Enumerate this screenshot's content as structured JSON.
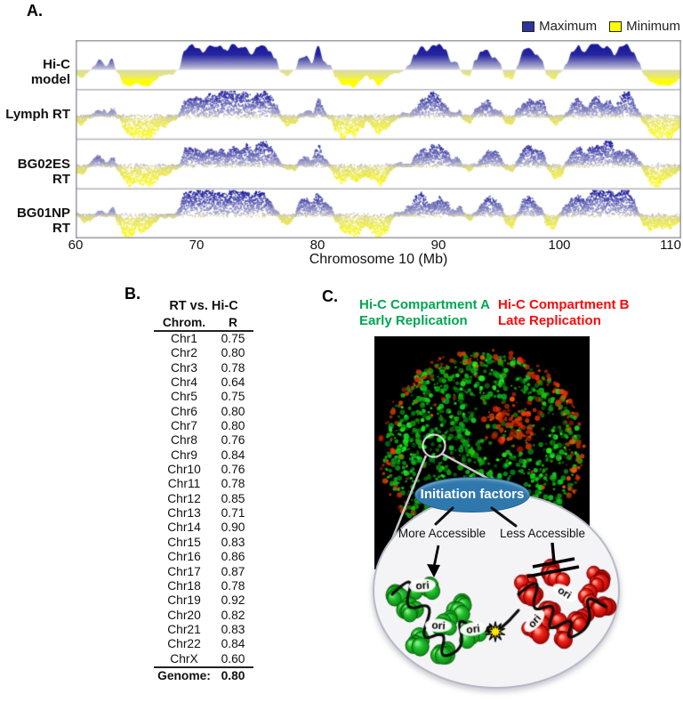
{
  "figure": {
    "panelA": {
      "label": "A."
    },
    "panelB": {
      "label": "B."
    },
    "panelC": {
      "label": "C.",
      "compartmentA_line1": "Hi-C Compartment A",
      "compartmentA_line2": "Early Replication",
      "compartmentB_line1": "Hi-C Compartment B",
      "compartmentB_line2": "Late Replication",
      "green_text_color": "#00a651",
      "red_text_color": "#fa0a0a",
      "bubble": {
        "factors_label": "Initiation factors",
        "factors_bg": "#2f78ad",
        "more_label": "More Accessible",
        "less_label": "Less Accessible",
        "ori_label": "ori",
        "bubble_fill": "#f4f4f6",
        "green_bead": "#22c02e",
        "red_bead": "#ee2518",
        "star_color": "#ffe800"
      },
      "nucleus_colors": {
        "green_signal": "#00cc00",
        "red_signal": "#ee2200",
        "background": "#000000"
      }
    }
  },
  "chart_data": [
    {
      "id": "panelA_replication_tracks",
      "type": "area",
      "tracks": [
        "Hi-C model",
        "Lymph RT",
        "BG02ES RT",
        "BG01NP RT"
      ],
      "legend": [
        {
          "label": "Maximum",
          "color": "#32329b"
        },
        {
          "label": "Minimum",
          "color": "#ffff00"
        }
      ],
      "legend_position": "top-right",
      "x_axis": {
        "label": "Chromosome 10 (Mb)",
        "min": 60,
        "max": 110,
        "ticks": [
          "60",
          "70",
          "80",
          "90",
          "100",
          "110"
        ]
      },
      "y_axis": {
        "min": -1,
        "max": 1,
        "grid": false
      },
      "style": {
        "pos_dark": "#14149a",
        "pos_mid": "#2626a0",
        "pos_light": "#cfcfe0",
        "neg_pale": "#d9d9ac",
        "neg_bright": "#ffff00"
      },
      "signal_start": 60,
      "signal_step": 0.5,
      "signal_values": [
        -0.2,
        -0.35,
        -0.15,
        0.1,
        0.35,
        0.15,
        0.45,
        -0.2,
        -0.8,
        -0.9,
        -0.75,
        -0.9,
        -0.85,
        -0.6,
        -0.35,
        -0.3,
        -0.25,
        0.1,
        0.8,
        1.0,
        0.9,
        0.7,
        0.95,
        0.8,
        0.95,
        0.75,
        1.0,
        0.85,
        0.95,
        0.6,
        0.9,
        0.95,
        0.7,
        0.4,
        -0.1,
        -0.35,
        -0.1,
        0.4,
        0.5,
        0.25,
        0.9,
        0.3,
        0.15,
        -0.5,
        -0.9,
        -0.75,
        -0.95,
        -0.6,
        -0.35,
        -0.55,
        -0.8,
        -0.5,
        -0.25,
        -0.2,
        -0.1,
        0.15,
        0.6,
        0.85,
        0.7,
        0.9,
        0.95,
        0.8,
        0.35,
        0.3,
        -0.2,
        -0.3,
        0.3,
        0.7,
        0.8,
        0.5,
        0.3,
        -0.4,
        -0.5,
        0.2,
        0.7,
        0.8,
        0.6,
        0.35,
        -0.4,
        -0.6,
        -0.2,
        0.3,
        0.7,
        0.9,
        0.6,
        0.9,
        1.0,
        0.8,
        0.9,
        0.55,
        0.85,
        0.95,
        0.7,
        0.3,
        -0.3,
        -0.7,
        -0.85,
        -0.8,
        -0.9,
        -0.7,
        -0.5
      ]
    },
    {
      "id": "panelB_correlation_table",
      "type": "table",
      "title": "RT vs. Hi-C",
      "columns": [
        "Chrom.",
        "R"
      ],
      "rows": [
        [
          "Chr1",
          "0.75"
        ],
        [
          "Chr2",
          "0.80"
        ],
        [
          "Chr3",
          "0.78"
        ],
        [
          "Chr4",
          "0.64"
        ],
        [
          "Chr5",
          "0.75"
        ],
        [
          "Chr6",
          "0.80"
        ],
        [
          "Chr7",
          "0.80"
        ],
        [
          "Chr8",
          "0.76"
        ],
        [
          "Chr9",
          "0.84"
        ],
        [
          "Chr10",
          "0.76"
        ],
        [
          "Chr11",
          "0.78"
        ],
        [
          "Chr12",
          "0.85"
        ],
        [
          "Chr13",
          "0.71"
        ],
        [
          "Chr14",
          "0.90"
        ],
        [
          "Chr15",
          "0.83"
        ],
        [
          "Chr16",
          "0.86"
        ],
        [
          "Chr17",
          "0.87"
        ],
        [
          "Chr18",
          "0.78"
        ],
        [
          "Chr19",
          "0.92"
        ],
        [
          "Chr20",
          "0.82"
        ],
        [
          "Chr21",
          "0.83"
        ],
        [
          "Chr22",
          "0.84"
        ],
        [
          "ChrX",
          "0.60"
        ]
      ],
      "footer": [
        "Genome:",
        "0.80"
      ]
    }
  ]
}
